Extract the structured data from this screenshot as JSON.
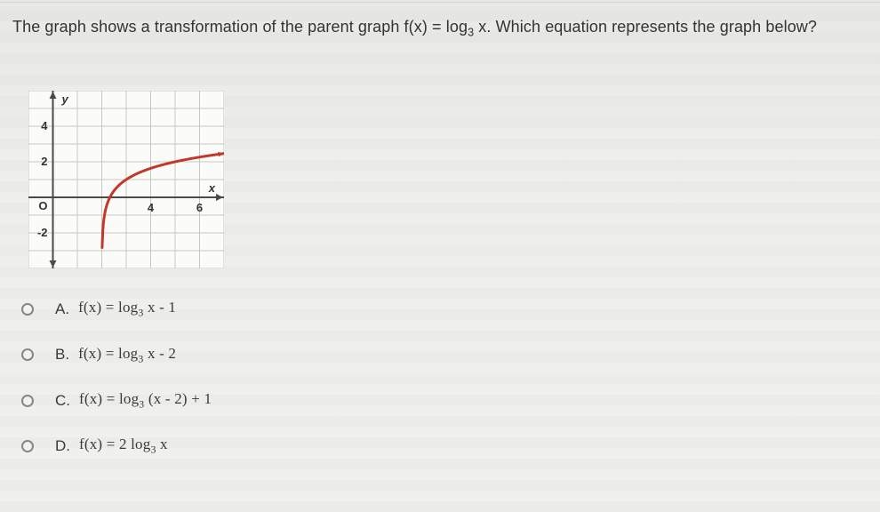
{
  "question": {
    "prefix": "The graph shows a transformation of the parent graph f(x) = log",
    "sub1": "3",
    "mid": " x. Which equation represents the graph below?"
  },
  "chart": {
    "type": "line",
    "background_color": "#fbfbf9",
    "grid_color": "#c8c8c0",
    "axis_color": "#4a4a48",
    "curve_color": "#c0392b",
    "curve_width": 3,
    "asymptote_x": 2,
    "xlim": [
      -1,
      7
    ],
    "ylim": [
      -4,
      6
    ],
    "xticks": [
      4,
      6
    ],
    "yticks": [
      4,
      2,
      -2
    ],
    "origin_label": "O",
    "x_axis_label": "x",
    "y_axis_label": "y",
    "label_fontsize": 13,
    "curve_points_sample": [
      {
        "x": 2.02,
        "y": -4.0
      },
      {
        "x": 2.1,
        "y": -1.09
      },
      {
        "x": 2.3,
        "y": -0.1
      },
      {
        "x": 2.6,
        "y": 0.54
      },
      {
        "x": 3.0,
        "y": 1.0
      },
      {
        "x": 3.5,
        "y": 1.37
      },
      {
        "x": 4.2,
        "y": 1.72
      },
      {
        "x": 5.0,
        "y": 2.0
      },
      {
        "x": 6.0,
        "y": 2.26
      },
      {
        "x": 7.0,
        "y": 2.46
      }
    ]
  },
  "options": [
    {
      "letter": "A.",
      "plain": "f(x) = log",
      "sub": "3",
      "tail": " x - 1"
    },
    {
      "letter": "B.",
      "plain": "f(x) = log",
      "sub": "3",
      "tail": " x - 2"
    },
    {
      "letter": "C.",
      "plain": "f(x) = log",
      "sub": "3",
      "tail": " (x - 2) + 1"
    },
    {
      "letter": "D.",
      "plain": "f(x) = 2 log",
      "sub": "3",
      "tail": " x"
    }
  ]
}
